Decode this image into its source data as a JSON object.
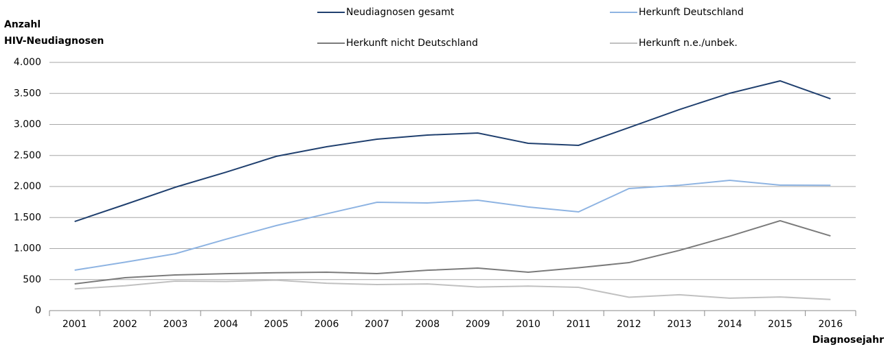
{
  "chart_data": {
    "type": "line",
    "ylabel": [
      "Anzahl",
      "HIV-Neudiagnosen"
    ],
    "xlabel": "Diagnosejahr",
    "categories": [
      "2001",
      "2002",
      "2003",
      "2004",
      "2005",
      "2006",
      "2007",
      "2008",
      "2009",
      "2010",
      "2011",
      "2012",
      "2013",
      "2014",
      "2015",
      "2016"
    ],
    "series": [
      {
        "name": "Neudiagnosen gesamt",
        "color": "#1f3f6e",
        "values": [
          1436,
          1710,
          1989,
          2230,
          2486,
          2641,
          2762,
          2829,
          2862,
          2696,
          2663,
          2950,
          3240,
          3503,
          3702,
          3414
        ]
      },
      {
        "name": "Herkunft Deutschland",
        "color": "#8db3e2",
        "values": [
          652,
          780,
          917,
          1150,
          1370,
          1560,
          1746,
          1735,
          1779,
          1670,
          1591,
          1967,
          2020,
          2099,
          2022,
          2020
        ]
      },
      {
        "name": "Herkunft nicht Deutschland",
        "color": "#7a7a7a",
        "values": [
          431,
          530,
          575,
          595,
          610,
          619,
          597,
          650,
          685,
          619,
          690,
          773,
          970,
          1200,
          1448,
          1204
        ]
      },
      {
        "name": "Herkunft n.e./unbek.",
        "color": "#c0c0c0",
        "values": [
          350,
          400,
          475,
          470,
          490,
          440,
          420,
          430,
          380,
          395,
          375,
          215,
          255,
          200,
          220,
          180
        ]
      }
    ],
    "ylim": [
      0,
      4000
    ],
    "yticks": [
      0,
      500,
      {
        "value": 1000,
        "label": "1.000"
      },
      {
        "value": 1500,
        "label": "1.500"
      },
      {
        "value": 2000,
        "label": "2.000"
      },
      {
        "value": 2500,
        "label": "2.500"
      },
      {
        "value": 3000,
        "label": "3.000"
      },
      {
        "value": 3500,
        "label": "3.500"
      },
      {
        "value": 4000,
        "label": "4.000"
      }
    ],
    "grid": true,
    "legend": "top"
  }
}
